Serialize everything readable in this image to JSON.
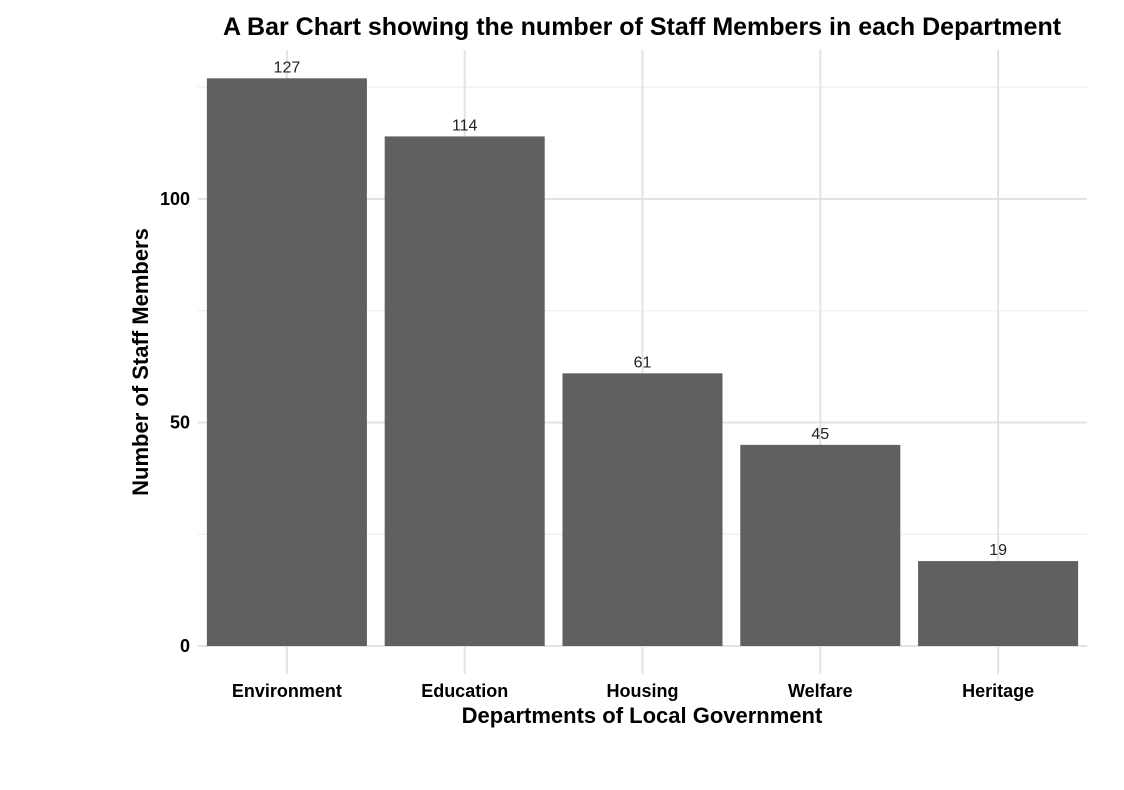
{
  "chart_data": {
    "type": "bar",
    "title": "A Bar Chart showing the number of Staff Members in each Department",
    "xlabel": "Departments of Local Government",
    "ylabel": "Number of Staff Members",
    "categories": [
      "Environment",
      "Education",
      "Housing",
      "Welfare",
      "Heritage"
    ],
    "values": [
      127,
      114,
      61,
      45,
      19
    ],
    "data_labels": [
      "127",
      "114",
      "61",
      "45",
      "19"
    ],
    "ylim": [
      0,
      130
    ],
    "yticks": [
      0,
      50,
      100
    ],
    "grid": true,
    "legend": "none",
    "bar_color": "#595959"
  }
}
